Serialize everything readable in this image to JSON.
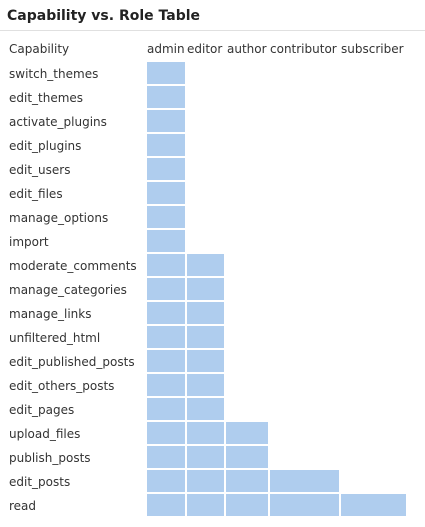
{
  "title": "Capability vs. Role Table",
  "header": {
    "capability_label": "Capability",
    "roles": [
      "admin",
      "editor",
      "author",
      "contributor",
      "subscriber"
    ]
  },
  "colors": {
    "granted_cell": "#afcdee",
    "background": "#ffffff",
    "text": "#333333"
  },
  "rows": [
    {
      "capability": "switch_themes",
      "granted_roles": [
        "admin"
      ]
    },
    {
      "capability": "edit_themes",
      "granted_roles": [
        "admin"
      ]
    },
    {
      "capability": "activate_plugins",
      "granted_roles": [
        "admin"
      ]
    },
    {
      "capability": "edit_plugins",
      "granted_roles": [
        "admin"
      ]
    },
    {
      "capability": "edit_users",
      "granted_roles": [
        "admin"
      ]
    },
    {
      "capability": "edit_files",
      "granted_roles": [
        "admin"
      ]
    },
    {
      "capability": "manage_options",
      "granted_roles": [
        "admin"
      ]
    },
    {
      "capability": "import",
      "granted_roles": [
        "admin"
      ]
    },
    {
      "capability": "moderate_comments",
      "granted_roles": [
        "admin",
        "editor"
      ]
    },
    {
      "capability": "manage_categories",
      "granted_roles": [
        "admin",
        "editor"
      ]
    },
    {
      "capability": "manage_links",
      "granted_roles": [
        "admin",
        "editor"
      ]
    },
    {
      "capability": "unfiltered_html",
      "granted_roles": [
        "admin",
        "editor"
      ]
    },
    {
      "capability": "edit_published_posts",
      "granted_roles": [
        "admin",
        "editor"
      ]
    },
    {
      "capability": "edit_others_posts",
      "granted_roles": [
        "admin",
        "editor"
      ]
    },
    {
      "capability": "edit_pages",
      "granted_roles": [
        "admin",
        "editor"
      ]
    },
    {
      "capability": "upload_files",
      "granted_roles": [
        "admin",
        "editor",
        "author"
      ]
    },
    {
      "capability": "publish_posts",
      "granted_roles": [
        "admin",
        "editor",
        "author"
      ]
    },
    {
      "capability": "edit_posts",
      "granted_roles": [
        "admin",
        "editor",
        "author",
        "contributor"
      ]
    },
    {
      "capability": "read",
      "granted_roles": [
        "admin",
        "editor",
        "author",
        "contributor",
        "subscriber"
      ]
    }
  ]
}
